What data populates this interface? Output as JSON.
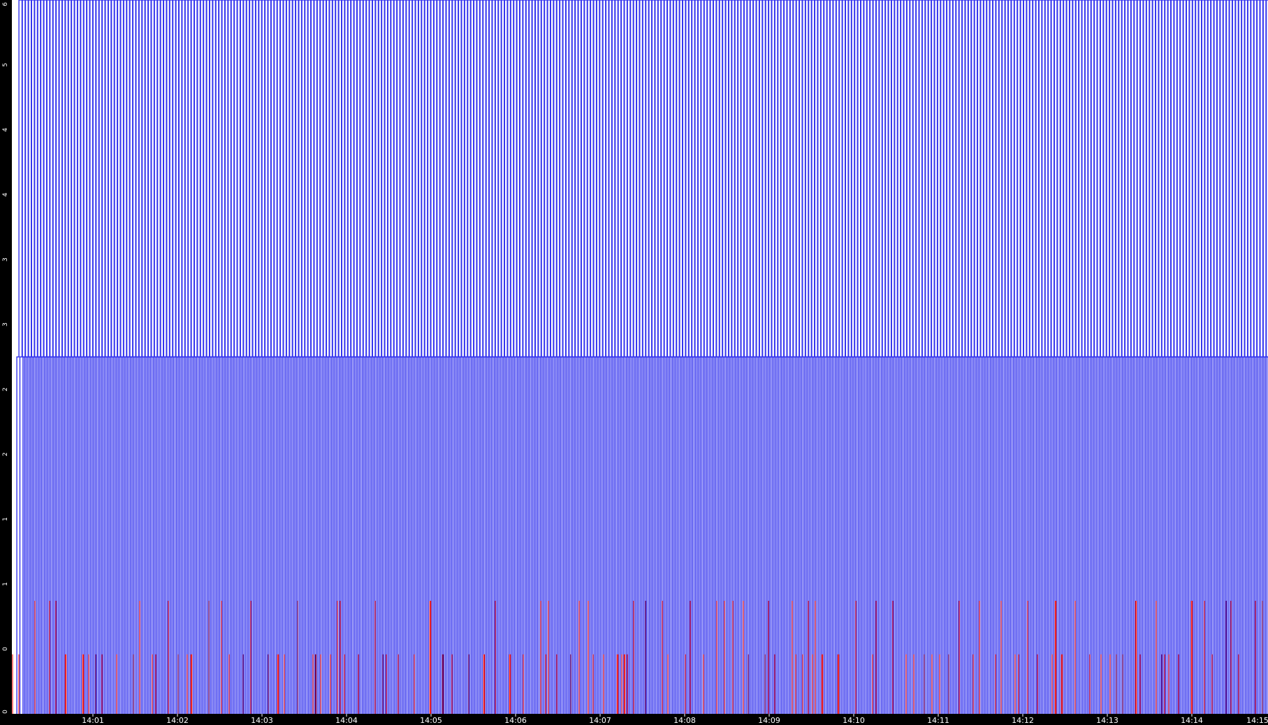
{
  "chart_data": {
    "type": "line",
    "title": "",
    "xlabel": "",
    "ylabel": "",
    "grid": false,
    "legend": "none",
    "x_tick_labels": [
      "14:01",
      "14:02",
      "14:03",
      "14:04",
      "14:05",
      "14:06",
      "14:07",
      "14:08",
      "14:09",
      "14:10",
      "14:11",
      "14:12",
      "14:13",
      "14:14",
      "14:15"
    ],
    "y_tick_labels": [
      "0",
      "0",
      "1",
      "1",
      "2",
      "2",
      "3",
      "3",
      "4",
      "4",
      "5",
      "6"
    ],
    "x_range_minutes": [
      0,
      15
    ],
    "colors": {
      "background": "#ffffff",
      "frame": "#000000",
      "blue_series": "#3333ee",
      "red_series": "#ee2222",
      "overlap": "#7a0a55"
    },
    "series": [
      {
        "color": "#3333ee",
        "baseline": 0,
        "pulse_levels": [
          3,
          6
        ],
        "pulse_period_seconds": 2.18,
        "note_level": "pulses rise to 3 then to top of scale"
      },
      {
        "color": "#ee2222",
        "baseline": 0,
        "pulse_levels": [
          0.5,
          0.95
        ],
        "irregular": true
      }
    ]
  }
}
